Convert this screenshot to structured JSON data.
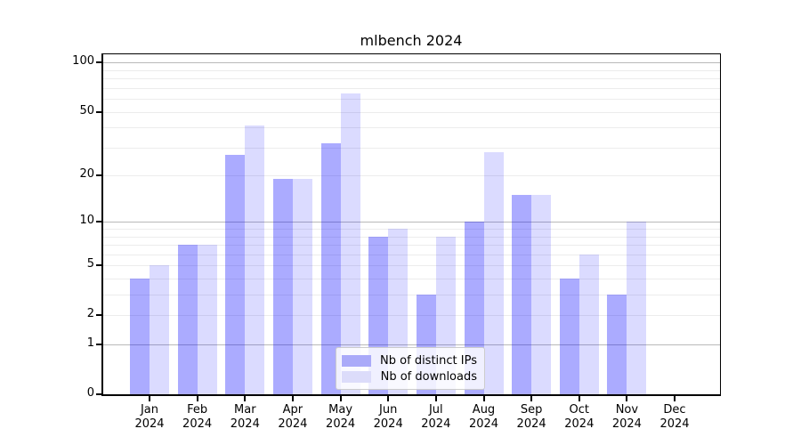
{
  "figure_title": "mlbench 2024",
  "chart_data": {
    "type": "bar",
    "title": "mlbench 2024",
    "categories": [
      "Jan",
      "Feb",
      "Mar",
      "Apr",
      "May",
      "Jun",
      "Jul",
      "Aug",
      "Sep",
      "Oct",
      "Nov",
      "Dec"
    ],
    "category_year": "2024",
    "series": [
      {
        "name": "Nb of distinct IPs",
        "values": [
          4,
          7,
          27,
          19,
          32,
          8,
          3,
          10,
          15,
          4,
          3,
          0
        ],
        "fill": "rgba(0,0,255,0.33)",
        "legend_color": "#aaaaf9"
      },
      {
        "name": "Nb of downloads",
        "values": [
          5,
          7,
          41,
          19,
          65,
          9,
          8,
          28,
          15,
          6,
          10,
          0
        ],
        "fill": "rgba(0,0,255,0.14)",
        "legend_color": "#dcdcfa"
      }
    ],
    "xlabel": "",
    "ylabel": "",
    "yscale": "log1p",
    "ylim": [
      0,
      112.5
    ],
    "yticks": [
      0,
      1,
      2,
      5,
      10,
      20,
      50,
      100
    ],
    "major_gridlines": [
      1,
      10,
      100
    ],
    "minor_gridlines": [
      2,
      3,
      4,
      5,
      6,
      7,
      8,
      9,
      20,
      30,
      40,
      50,
      60,
      70,
      80,
      90
    ],
    "grid": true,
    "legend_position": "bottom-center"
  },
  "colors": {
    "bar_distinct_ips_solid": "#aaaaf9",
    "bar_downloads_solid": "#dcdcfa",
    "major_grid": "#b9b9b9",
    "minor_grid": "#ececec",
    "axis": "#000000",
    "legend_border": "#cccccc"
  }
}
